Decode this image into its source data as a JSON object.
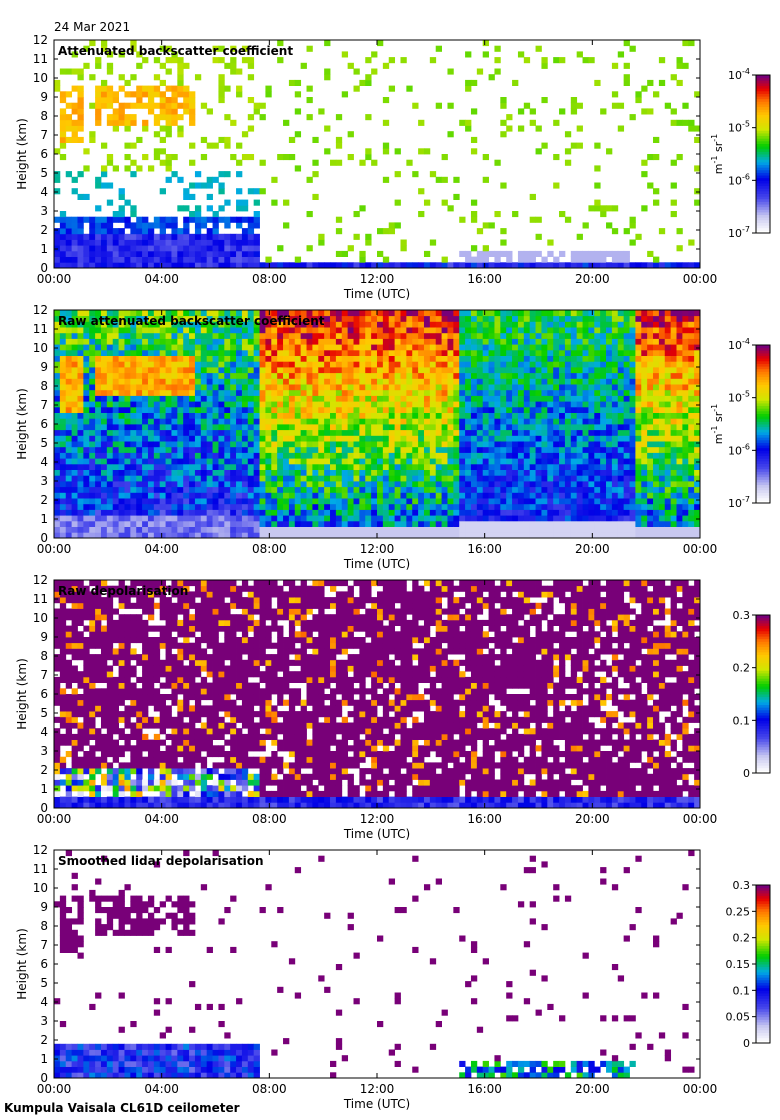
{
  "page": {
    "date": "24 Mar 2021",
    "footer": "Kumpula Vaisala CL61D ceilometer"
  },
  "chart_data": [
    {
      "type": "heatmap",
      "title": "Attenuated backscatter coefficient",
      "xlabel": "Time (UTC)",
      "ylabel": "Height (km)",
      "xticks": [
        "00:00",
        "04:00",
        "08:00",
        "12:00",
        "16:00",
        "20:00",
        "00:00"
      ],
      "xlim_hours": [
        0,
        24
      ],
      "yticks": [
        0,
        1,
        2,
        3,
        4,
        5,
        6,
        7,
        8,
        9,
        10,
        11,
        12
      ],
      "ylim": [
        0,
        12
      ],
      "colorbar": {
        "scale": "log",
        "ticks": [
          {
            "base": "10",
            "exp": "-4",
            "value": 0.0001
          },
          {
            "base": "10",
            "exp": "-5",
            "value": 1e-05
          },
          {
            "base": "10",
            "exp": "-6",
            "value": 1e-06
          },
          {
            "base": "10",
            "exp": "-7",
            "value": 1e-07
          }
        ],
        "unit_main": "m",
        "unit_exp1": "-1",
        "unit_sr": " sr",
        "unit_exp2": "-1"
      }
    },
    {
      "type": "heatmap",
      "title": "Raw attenuated backscatter coefficient",
      "xlabel": "Time (UTC)",
      "ylabel": "Height (km)",
      "xticks": [
        "00:00",
        "04:00",
        "08:00",
        "12:00",
        "16:00",
        "20:00",
        "00:00"
      ],
      "xlim_hours": [
        0,
        24
      ],
      "yticks": [
        0,
        1,
        2,
        3,
        4,
        5,
        6,
        7,
        8,
        9,
        10,
        11,
        12
      ],
      "ylim": [
        0,
        12
      ],
      "colorbar": {
        "scale": "log",
        "ticks": [
          {
            "base": "10",
            "exp": "-4",
            "value": 0.0001
          },
          {
            "base": "10",
            "exp": "-5",
            "value": 1e-05
          },
          {
            "base": "10",
            "exp": "-6",
            "value": 1e-06
          },
          {
            "base": "10",
            "exp": "-7",
            "value": 1e-07
          }
        ],
        "unit_main": "m",
        "unit_exp1": "-1",
        "unit_sr": " sr",
        "unit_exp2": "-1"
      }
    },
    {
      "type": "heatmap",
      "title": "Raw depolarisation",
      "xlabel": "Time (UTC)",
      "ylabel": "Height (km)",
      "xticks": [
        "00:00",
        "04:00",
        "08:00",
        "12:00",
        "16:00",
        "20:00",
        "00:00"
      ],
      "xlim_hours": [
        0,
        24
      ],
      "yticks": [
        0,
        1,
        2,
        3,
        4,
        5,
        6,
        7,
        8,
        9,
        10,
        11,
        12
      ],
      "ylim": [
        0,
        12
      ],
      "colorbar": {
        "scale": "linear",
        "range": [
          0,
          0.3
        ],
        "ticks": [
          {
            "label": "0.3",
            "value": 0.3
          },
          {
            "label": "0.2",
            "value": 0.2
          },
          {
            "label": "0.1",
            "value": 0.1
          },
          {
            "label": "0",
            "value": 0
          }
        ]
      }
    },
    {
      "type": "heatmap",
      "title": "Smoothed lidar depolarisation",
      "xlabel": "Time (UTC)",
      "ylabel": "Height (km)",
      "xticks": [
        "00:00",
        "04:00",
        "08:00",
        "12:00",
        "16:00",
        "20:00",
        "00:00"
      ],
      "xlim_hours": [
        0,
        24
      ],
      "yticks": [
        0,
        1,
        2,
        3,
        4,
        5,
        6,
        7,
        8,
        9,
        10,
        11,
        12
      ],
      "ylim": [
        0,
        12
      ],
      "colorbar": {
        "scale": "linear",
        "range": [
          0,
          0.3
        ],
        "ticks": [
          {
            "label": "0.3",
            "value": 0.3
          },
          {
            "label": "0.25",
            "value": 0.25
          },
          {
            "label": "0.2",
            "value": 0.2
          },
          {
            "label": "0.15",
            "value": 0.15
          },
          {
            "label": "0.1",
            "value": 0.1
          },
          {
            "label": "0.05",
            "value": 0.05
          },
          {
            "label": "0",
            "value": 0
          }
        ]
      }
    }
  ]
}
